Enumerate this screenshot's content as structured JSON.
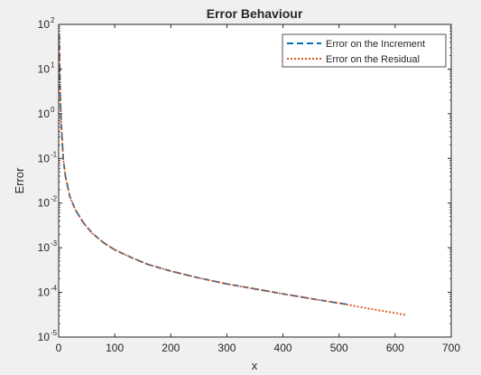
{
  "chart_data": {
    "type": "line",
    "title": "Error Behaviour",
    "xlabel": "x",
    "ylabel": "Error",
    "xlim": [
      0,
      700
    ],
    "ylim": [
      1e-05,
      100
    ],
    "yscale": "log",
    "grid": false,
    "legend_position": "top-right",
    "x_ticks": [
      {
        "value": 0,
        "label": "0"
      },
      {
        "value": 100,
        "label": "100"
      },
      {
        "value": 200,
        "label": "200"
      },
      {
        "value": 300,
        "label": "300"
      },
      {
        "value": 400,
        "label": "400"
      },
      {
        "value": 500,
        "label": "500"
      },
      {
        "value": 600,
        "label": "600"
      },
      {
        "value": 700,
        "label": "700"
      }
    ],
    "y_ticks": [
      {
        "value": 1e-05,
        "base": "10",
        "exp": "-5"
      },
      {
        "value": 0.0001,
        "base": "10",
        "exp": "-4"
      },
      {
        "value": 0.001,
        "base": "10",
        "exp": "-3"
      },
      {
        "value": 0.01,
        "base": "10",
        "exp": "-2"
      },
      {
        "value": 0.1,
        "base": "10",
        "exp": "-1"
      },
      {
        "value": 1,
        "base": "10",
        "exp": "0"
      },
      {
        "value": 10,
        "base": "10",
        "exp": "1"
      },
      {
        "value": 100,
        "base": "10",
        "exp": "2"
      }
    ],
    "series": [
      {
        "name": "Error on the Increment",
        "color": "#0072bd",
        "line_style": "dashed",
        "x": [
          1,
          2,
          3,
          5,
          8,
          12,
          20,
          30,
          45,
          60,
          80,
          100,
          130,
          160,
          200,
          250,
          300,
          350,
          400,
          450,
          500,
          520
        ],
        "y": [
          60,
          10,
          2,
          0.5,
          0.1,
          0.04,
          0.014,
          0.007,
          0.0035,
          0.0021,
          0.0013,
          0.0009,
          0.0006,
          0.00042,
          0.0003,
          0.00021,
          0.000155,
          0.00012,
          9.25e-05,
          7.25e-05,
          5.75e-05,
          5.3e-05
        ]
      },
      {
        "name": "Error on the Residual",
        "color": "#d95319",
        "line_style": "dotted",
        "x": [
          1,
          2,
          3,
          5,
          8,
          12,
          20,
          30,
          45,
          60,
          80,
          100,
          130,
          160,
          200,
          250,
          300,
          350,
          400,
          450,
          500,
          550,
          600,
          620
        ],
        "y": [
          60,
          10,
          2,
          0.5,
          0.1,
          0.04,
          0.014,
          0.007,
          0.0035,
          0.0021,
          0.0013,
          0.0009,
          0.0006,
          0.00042,
          0.0003,
          0.00021,
          0.000155,
          0.00012,
          9.25e-05,
          7.25e-05,
          5.75e-05,
          4.4e-05,
          3.45e-05,
          3.1e-05
        ]
      }
    ]
  }
}
